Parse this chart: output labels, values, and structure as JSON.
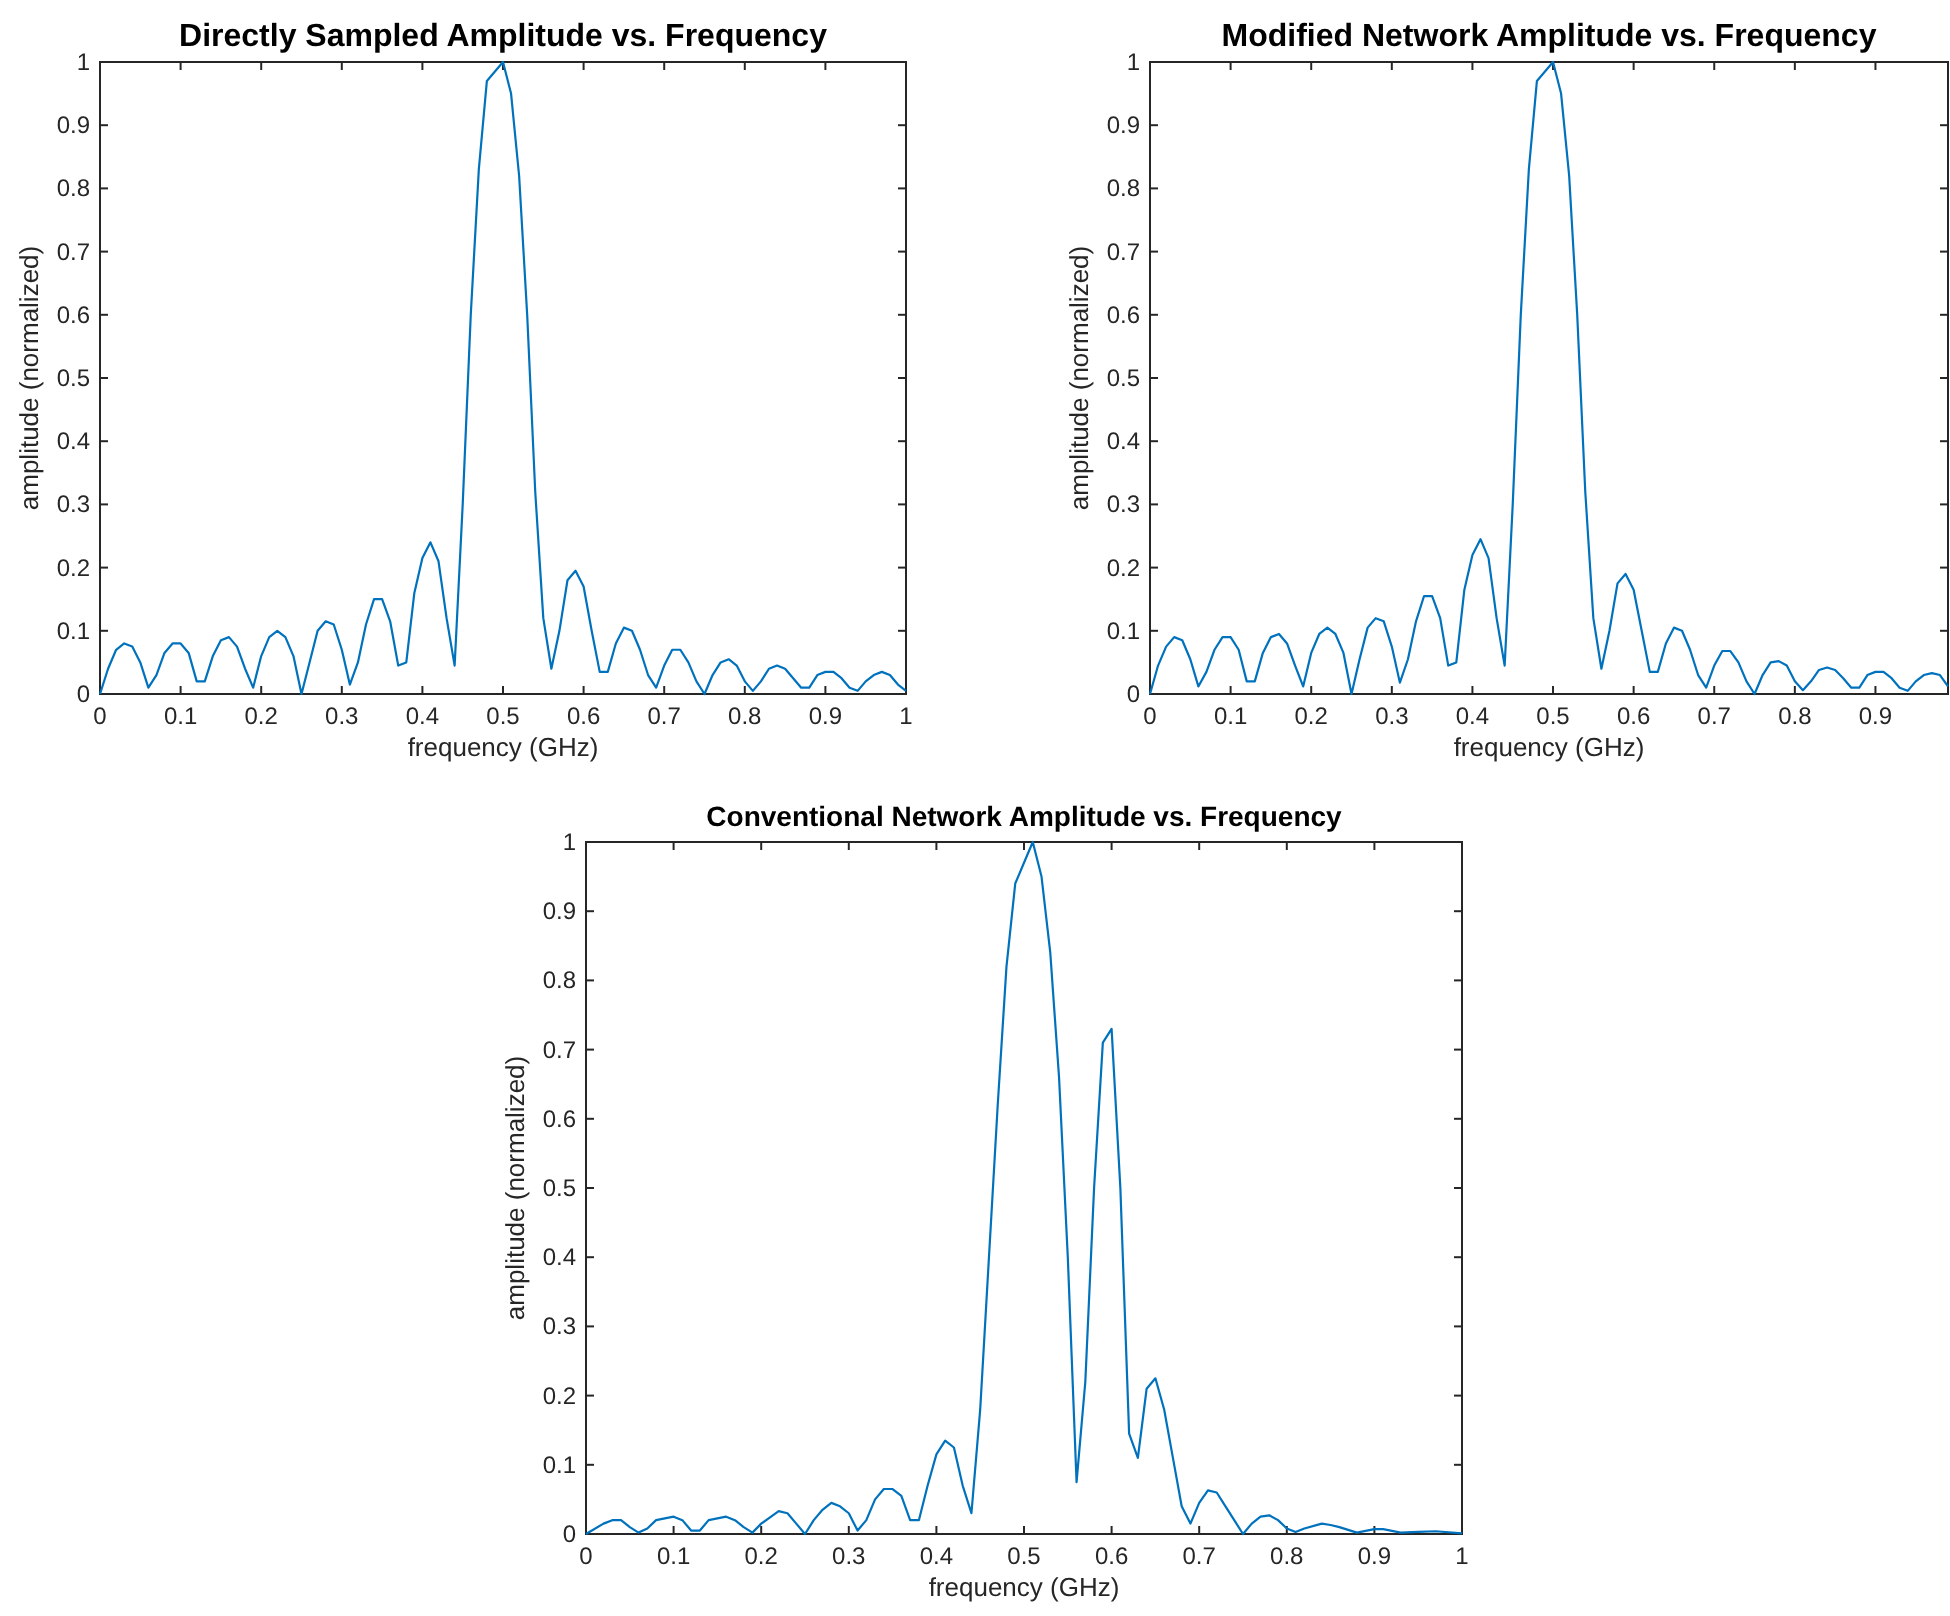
{
  "chart_data": [
    {
      "type": "line",
      "title": "Directly Sampled Amplitude vs. Frequency",
      "xlabel": "frequency (GHz)",
      "ylabel": "amplitude (normalized)",
      "xlim": [
        0,
        1
      ],
      "ylim": [
        0,
        1
      ],
      "xticks": [
        0,
        0.1,
        0.2,
        0.3,
        0.4,
        0.5,
        0.6,
        0.7,
        0.8,
        0.9,
        1
      ],
      "yticks": [
        0,
        0.1,
        0.2,
        0.3,
        0.4,
        0.5,
        0.6,
        0.7,
        0.8,
        0.9,
        1
      ],
      "x": [
        0,
        0.01,
        0.02,
        0.03,
        0.04,
        0.05,
        0.06,
        0.07,
        0.08,
        0.09,
        0.1,
        0.11,
        0.12,
        0.13,
        0.14,
        0.15,
        0.16,
        0.17,
        0.18,
        0.19,
        0.2,
        0.21,
        0.22,
        0.23,
        0.24,
        0.25,
        0.26,
        0.27,
        0.28,
        0.29,
        0.3,
        0.31,
        0.32,
        0.33,
        0.34,
        0.35,
        0.36,
        0.37,
        0.38,
        0.39,
        0.4,
        0.41,
        0.42,
        0.43,
        0.44,
        0.45,
        0.46,
        0.47,
        0.48,
        0.49,
        0.5,
        0.51,
        0.52,
        0.53,
        0.54,
        0.55,
        0.56,
        0.57,
        0.58,
        0.59,
        0.6,
        0.61,
        0.62,
        0.63,
        0.64,
        0.65,
        0.66,
        0.67,
        0.68,
        0.69,
        0.7,
        0.71,
        0.72,
        0.73,
        0.74,
        0.75,
        0.76,
        0.77,
        0.78,
        0.79,
        0.8,
        0.81,
        0.82,
        0.83,
        0.84,
        0.85,
        0.86,
        0.87,
        0.88,
        0.89,
        0.9,
        0.91,
        0.92,
        0.93,
        0.94,
        0.95,
        0.96,
        0.97,
        0.98,
        0.99,
        1
      ],
      "series": [
        {
          "color": "#0072bd",
          "values": [
            0,
            0.04,
            0.07,
            0.08,
            0.075,
            0.05,
            0.01,
            0.03,
            0.065,
            0.08,
            0.08,
            0.065,
            0.02,
            0.02,
            0.06,
            0.085,
            0.09,
            0.075,
            0.04,
            0.01,
            0.06,
            0.09,
            0.1,
            0.09,
            0.06,
            0,
            0.05,
            0.1,
            0.115,
            0.11,
            0.07,
            0.015,
            0.05,
            0.11,
            0.15,
            0.15,
            0.115,
            0.045,
            0.05,
            0.16,
            0.215,
            0.24,
            0.21,
            0.12,
            0.045,
            0.3,
            0.6,
            0.83,
            0.97,
            0.985,
            1,
            0.95,
            0.82,
            0.6,
            0.32,
            0.12,
            0.04,
            0.1,
            0.18,
            0.195,
            0.17,
            0.1,
            0.035,
            0.035,
            0.08,
            0.105,
            0.1,
            0.07,
            0.03,
            0.01,
            0.045,
            0.07,
            0.07,
            0.05,
            0.02,
            0,
            0.03,
            0.05,
            0.055,
            0.045,
            0.02,
            0.005,
            0.02,
            0.04,
            0.045,
            0.04,
            0.025,
            0.01,
            0.01,
            0.03,
            0.035,
            0.035,
            0.025,
            0.01,
            0.005,
            0.02,
            0.03,
            0.035,
            0.03,
            0.015,
            0.005
          ]
        }
      ]
    },
    {
      "type": "line",
      "title": "Modified Network Amplitude vs. Frequency",
      "xlabel": "frequency (GHz)",
      "ylabel": "amplitude (normalized)",
      "xlim": [
        0,
        0.99
      ],
      "ylim": [
        0,
        1
      ],
      "xticks": [
        0,
        0.1,
        0.2,
        0.3,
        0.4,
        0.5,
        0.6,
        0.7,
        0.8,
        0.9
      ],
      "yticks": [
        0,
        0.1,
        0.2,
        0.3,
        0.4,
        0.5,
        0.6,
        0.7,
        0.8,
        0.9,
        1
      ],
      "x": [
        0,
        0.01,
        0.02,
        0.03,
        0.04,
        0.05,
        0.06,
        0.07,
        0.08,
        0.09,
        0.1,
        0.11,
        0.12,
        0.13,
        0.14,
        0.15,
        0.16,
        0.17,
        0.18,
        0.19,
        0.2,
        0.21,
        0.22,
        0.23,
        0.24,
        0.25,
        0.26,
        0.27,
        0.28,
        0.29,
        0.3,
        0.31,
        0.32,
        0.33,
        0.34,
        0.35,
        0.36,
        0.37,
        0.38,
        0.39,
        0.4,
        0.41,
        0.42,
        0.43,
        0.44,
        0.45,
        0.46,
        0.47,
        0.48,
        0.49,
        0.5,
        0.51,
        0.52,
        0.53,
        0.54,
        0.55,
        0.56,
        0.57,
        0.58,
        0.59,
        0.6,
        0.61,
        0.62,
        0.63,
        0.64,
        0.65,
        0.66,
        0.67,
        0.68,
        0.69,
        0.7,
        0.71,
        0.72,
        0.73,
        0.74,
        0.75,
        0.76,
        0.77,
        0.78,
        0.79,
        0.8,
        0.81,
        0.82,
        0.83,
        0.84,
        0.85,
        0.86,
        0.87,
        0.88,
        0.89,
        0.9,
        0.91,
        0.92,
        0.93,
        0.94,
        0.95,
        0.96,
        0.97,
        0.98,
        0.99
      ],
      "series": [
        {
          "color": "#0072bd",
          "values": [
            0,
            0.045,
            0.075,
            0.09,
            0.085,
            0.055,
            0.012,
            0.035,
            0.07,
            0.09,
            0.09,
            0.07,
            0.02,
            0.02,
            0.065,
            0.09,
            0.095,
            0.08,
            0.045,
            0.012,
            0.065,
            0.095,
            0.105,
            0.095,
            0.065,
            0,
            0.055,
            0.105,
            0.12,
            0.115,
            0.075,
            0.018,
            0.055,
            0.115,
            0.155,
            0.155,
            0.12,
            0.045,
            0.05,
            0.165,
            0.22,
            0.245,
            0.215,
            0.12,
            0.045,
            0.3,
            0.6,
            0.83,
            0.97,
            0.985,
            1,
            0.95,
            0.82,
            0.6,
            0.32,
            0.12,
            0.04,
            0.1,
            0.175,
            0.19,
            0.165,
            0.1,
            0.035,
            0.035,
            0.08,
            0.105,
            0.1,
            0.07,
            0.03,
            0.01,
            0.045,
            0.068,
            0.068,
            0.05,
            0.02,
            0,
            0.03,
            0.05,
            0.052,
            0.045,
            0.02,
            0.006,
            0.02,
            0.038,
            0.042,
            0.038,
            0.025,
            0.01,
            0.01,
            0.03,
            0.035,
            0.035,
            0.025,
            0.01,
            0.005,
            0.02,
            0.03,
            0.033,
            0.03,
            0.012
          ]
        }
      ]
    },
    {
      "type": "line",
      "title": "Conventional Network Amplitude vs. Frequency",
      "xlabel": "frequency (GHz)",
      "ylabel": "amplitude (normalized)",
      "xlim": [
        0,
        1
      ],
      "ylim": [
        0,
        1
      ],
      "xticks": [
        0,
        0.1,
        0.2,
        0.3,
        0.4,
        0.5,
        0.6,
        0.7,
        0.8,
        0.9,
        1
      ],
      "yticks": [
        0,
        0.1,
        0.2,
        0.3,
        0.4,
        0.5,
        0.6,
        0.7,
        0.8,
        0.9,
        1
      ],
      "x": [
        0,
        0.02,
        0.03,
        0.04,
        0.05,
        0.06,
        0.07,
        0.08,
        0.1,
        0.11,
        0.12,
        0.13,
        0.14,
        0.16,
        0.17,
        0.18,
        0.19,
        0.2,
        0.22,
        0.23,
        0.24,
        0.25,
        0.26,
        0.27,
        0.28,
        0.29,
        0.3,
        0.31,
        0.32,
        0.33,
        0.34,
        0.35,
        0.36,
        0.37,
        0.38,
        0.39,
        0.4,
        0.41,
        0.42,
        0.43,
        0.44,
        0.45,
        0.46,
        0.47,
        0.48,
        0.49,
        0.5,
        0.51,
        0.52,
        0.53,
        0.54,
        0.55,
        0.56,
        0.57,
        0.58,
        0.59,
        0.6,
        0.61,
        0.62,
        0.63,
        0.64,
        0.65,
        0.66,
        0.67,
        0.68,
        0.69,
        0.7,
        0.71,
        0.72,
        0.73,
        0.74,
        0.75,
        0.76,
        0.77,
        0.78,
        0.79,
        0.8,
        0.81,
        0.82,
        0.84,
        0.85,
        0.86,
        0.88,
        0.9,
        0.91,
        0.93,
        0.95,
        0.97,
        1
      ],
      "series": [
        {
          "color": "#0072bd",
          "values": [
            0,
            0.015,
            0.02,
            0.02,
            0.01,
            0.002,
            0.008,
            0.02,
            0.025,
            0.02,
            0.005,
            0.005,
            0.02,
            0.025,
            0.02,
            0.01,
            0.002,
            0.015,
            0.033,
            0.03,
            0.015,
            0,
            0.02,
            0.035,
            0.045,
            0.04,
            0.03,
            0.005,
            0.02,
            0.05,
            0.065,
            0.065,
            0.055,
            0.02,
            0.02,
            0.07,
            0.115,
            0.135,
            0.125,
            0.07,
            0.03,
            0.18,
            0.4,
            0.62,
            0.82,
            0.94,
            0.97,
            1,
            0.95,
            0.84,
            0.66,
            0.4,
            0.075,
            0.22,
            0.5,
            0.71,
            0.73,
            0.5,
            0.145,
            0.11,
            0.21,
            0.225,
            0.18,
            0.11,
            0.04,
            0.015,
            0.045,
            0.063,
            0.06,
            0.04,
            0.02,
            0,
            0.015,
            0.025,
            0.027,
            0.02,
            0.008,
            0.003,
            0.008,
            0.015,
            0.013,
            0.01,
            0.002,
            0.007,
            0.007,
            0.002,
            0.003,
            0.004,
            0.001
          ]
        }
      ]
    }
  ]
}
